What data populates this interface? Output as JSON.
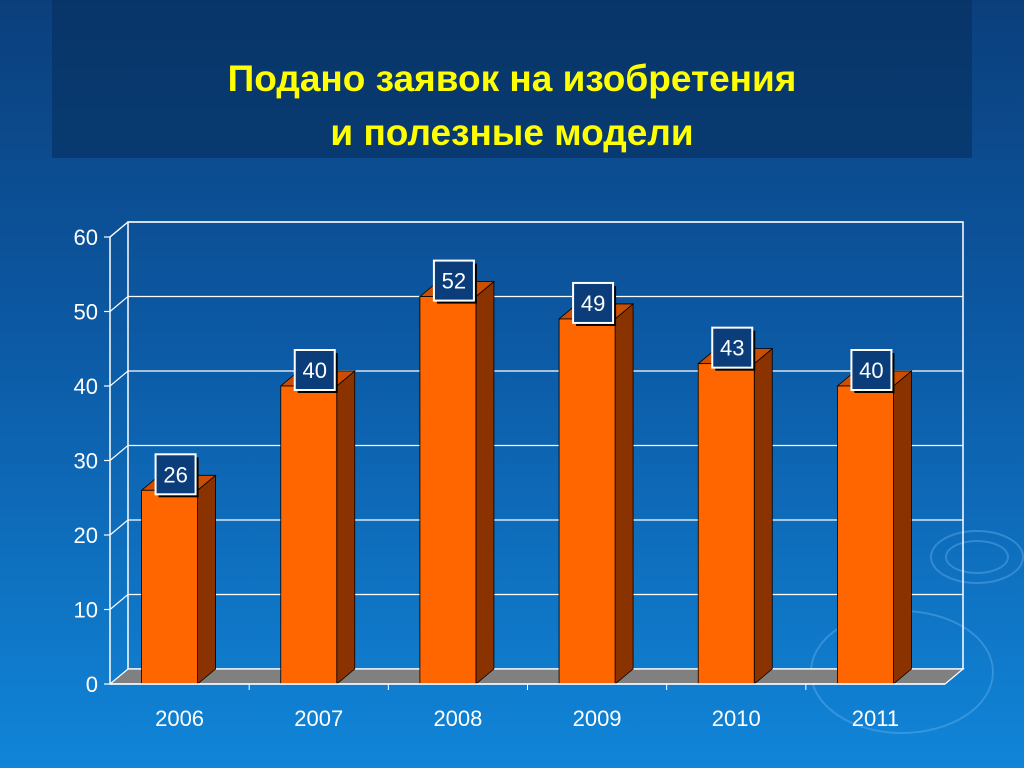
{
  "slide": {
    "title_line1": "Подано заявок на изобретения",
    "title_line2": "и полезные модели"
  },
  "colors": {
    "bar_front": "#ff6600",
    "bar_side": "#8a3300",
    "bar_top": "#cc4e00",
    "label_box": "#0a3d7a",
    "title": "#ffff00",
    "axis_text": "#ffffff",
    "floor": "#808080"
  },
  "chart_data": {
    "type": "bar",
    "title": "Подано заявок на изобретения и полезные модели",
    "categories": [
      "2006",
      "2007",
      "2008",
      "2009",
      "2010",
      "2011"
    ],
    "values": [
      26,
      40,
      52,
      49,
      43,
      40
    ],
    "data_labels": [
      "26",
      "40",
      "52",
      "49",
      "43",
      "40"
    ],
    "ylim": [
      0,
      60
    ],
    "yticks": [
      "0",
      "10",
      "20",
      "30",
      "40",
      "50",
      "60"
    ],
    "xlabel": "",
    "ylabel": "",
    "grid": true,
    "legend": "none"
  }
}
